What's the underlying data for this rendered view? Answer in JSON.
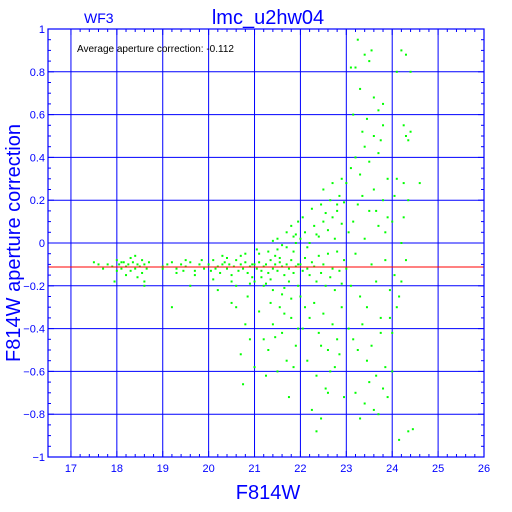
{
  "chart_data": {
    "type": "scatter",
    "panel_label": "WF3",
    "title": "lmc_u2hw04",
    "annotation": "Average aperture correction: -0.112",
    "xlabel": "F814W",
    "ylabel": "F814W aperture correction",
    "xlim": [
      16.5,
      26
    ],
    "ylim": [
      -1,
      1
    ],
    "x_ticks": [
      "17",
      "18",
      "19",
      "20",
      "21",
      "22",
      "23",
      "24",
      "25",
      "26"
    ],
    "y_ticks": [
      "1",
      "0.8",
      "0.6",
      "0.4",
      "0.2",
      "0",
      "−0.2",
      "−0.4",
      "−0.6",
      "−0.8",
      "−1"
    ],
    "reference_line": {
      "y": -0.112,
      "color": "#ff0000"
    },
    "grid": true,
    "colors": {
      "axes": "#0000ff",
      "points": "#00ff00",
      "text": "#0000ff",
      "reference": "#ff0000",
      "annotation": "#000000"
    },
    "points": [
      [
        17.5,
        -0.09
      ],
      [
        17.6,
        -0.1
      ],
      [
        17.7,
        -0.12
      ],
      [
        17.8,
        -0.1
      ],
      [
        17.9,
        -0.11
      ],
      [
        18.0,
        -0.08
      ],
      [
        18.05,
        -0.1
      ],
      [
        18.1,
        -0.12
      ],
      [
        18.15,
        -0.09
      ],
      [
        18.2,
        -0.11
      ],
      [
        18.25,
        -0.1
      ],
      [
        18.3,
        -0.13
      ],
      [
        18.35,
        -0.09
      ],
      [
        18.4,
        -0.12
      ],
      [
        18.45,
        -0.1
      ],
      [
        18.5,
        -0.11
      ],
      [
        18.55,
        -0.14
      ],
      [
        18.6,
        -0.1
      ],
      [
        18.65,
        -0.12
      ],
      [
        18.7,
        -0.09
      ],
      [
        18.2,
        -0.15
      ],
      [
        18.3,
        -0.07
      ],
      [
        18.45,
        -0.16
      ],
      [
        18.55,
        -0.08
      ],
      [
        18.6,
        -0.18
      ],
      [
        18.1,
        -0.09
      ],
      [
        17.95,
        -0.18
      ],
      [
        18.4,
        -0.06
      ],
      [
        18.6,
        -0.2
      ],
      [
        18.0,
        -0.13
      ],
      [
        19.0,
        -0.11
      ],
      [
        19.1,
        -0.1
      ],
      [
        19.2,
        -0.09
      ],
      [
        19.3,
        -0.12
      ],
      [
        19.4,
        -0.1
      ],
      [
        19.5,
        -0.11
      ],
      [
        19.6,
        -0.09
      ],
      [
        19.7,
        -0.13
      ],
      [
        19.8,
        -0.1
      ],
      [
        19.9,
        -0.12
      ],
      [
        19.3,
        -0.14
      ],
      [
        19.5,
        -0.08
      ],
      [
        19.7,
        -0.15
      ],
      [
        19.2,
        -0.3
      ],
      [
        19.6,
        -0.2
      ],
      [
        19.0,
        -0.12
      ],
      [
        19.85,
        -0.08
      ],
      [
        19.45,
        -0.13
      ],
      [
        20.0,
        -0.1
      ],
      [
        20.05,
        -0.13
      ],
      [
        20.1,
        -0.08
      ],
      [
        20.15,
        -0.12
      ],
      [
        20.2,
        -0.11
      ],
      [
        20.25,
        -0.14
      ],
      [
        20.3,
        -0.1
      ],
      [
        20.35,
        -0.09
      ],
      [
        20.4,
        -0.12
      ],
      [
        20.45,
        -0.1
      ],
      [
        20.5,
        -0.15
      ],
      [
        20.55,
        -0.11
      ],
      [
        20.6,
        -0.08
      ],
      [
        20.65,
        -0.13
      ],
      [
        20.7,
        -0.1
      ],
      [
        20.75,
        -0.12
      ],
      [
        20.8,
        -0.09
      ],
      [
        20.85,
        -0.14
      ],
      [
        20.9,
        -0.11
      ],
      [
        20.95,
        -0.1
      ],
      [
        20.1,
        -0.17
      ],
      [
        20.3,
        -0.06
      ],
      [
        20.5,
        -0.18
      ],
      [
        20.7,
        -0.06
      ],
      [
        20.9,
        -0.19
      ],
      [
        20.4,
        -0.07
      ],
      [
        20.6,
        -0.2
      ],
      [
        20.8,
        -0.05
      ],
      [
        20.2,
        -0.22
      ],
      [
        20.95,
        -0.16
      ],
      [
        20.6,
        -0.3
      ],
      [
        20.8,
        -0.38
      ],
      [
        20.7,
        -0.52
      ],
      [
        20.9,
        -0.45
      ],
      [
        20.75,
        -0.66
      ],
      [
        20.5,
        -0.28
      ],
      [
        20.85,
        -0.25
      ],
      [
        21.0,
        -0.1
      ],
      [
        21.05,
        -0.12
      ],
      [
        21.1,
        -0.09
      ],
      [
        21.15,
        -0.13
      ],
      [
        21.2,
        -0.11
      ],
      [
        21.25,
        -0.1
      ],
      [
        21.3,
        -0.14
      ],
      [
        21.35,
        -0.08
      ],
      [
        21.4,
        -0.12
      ],
      [
        21.45,
        -0.1
      ],
      [
        21.5,
        -0.13
      ],
      [
        21.55,
        -0.09
      ],
      [
        21.6,
        -0.11
      ],
      [
        21.65,
        -0.15
      ],
      [
        21.7,
        -0.1
      ],
      [
        21.75,
        -0.12
      ],
      [
        21.8,
        -0.08
      ],
      [
        21.85,
        -0.14
      ],
      [
        21.9,
        -0.11
      ],
      [
        21.95,
        -0.1
      ],
      [
        21.0,
        -0.18
      ],
      [
        21.1,
        -0.05
      ],
      [
        21.2,
        -0.2
      ],
      [
        21.3,
        -0.04
      ],
      [
        21.4,
        -0.22
      ],
      [
        21.5,
        -0.03
      ],
      [
        21.6,
        -0.24
      ],
      [
        21.7,
        -0.02
      ],
      [
        21.8,
        -0.26
      ],
      [
        21.9,
        0.0
      ],
      [
        21.05,
        -0.03
      ],
      [
        21.25,
        -0.19
      ],
      [
        21.45,
        -0.06
      ],
      [
        21.65,
        -0.21
      ],
      [
        21.85,
        -0.04
      ],
      [
        21.15,
        -0.16
      ],
      [
        21.35,
        -0.17
      ],
      [
        21.55,
        -0.07
      ],
      [
        21.75,
        -0.18
      ],
      [
        21.95,
        -0.2
      ],
      [
        21.1,
        -0.32
      ],
      [
        21.2,
        -0.45
      ],
      [
        21.3,
        -0.5
      ],
      [
        21.4,
        -0.38
      ],
      [
        21.5,
        -0.6
      ],
      [
        21.6,
        -0.42
      ],
      [
        21.7,
        -0.55
      ],
      [
        21.8,
        -0.35
      ],
      [
        21.9,
        -0.48
      ],
      [
        21.25,
        -0.62
      ],
      [
        21.55,
        -0.3
      ],
      [
        21.75,
        -0.72
      ],
      [
        21.35,
        -0.28
      ],
      [
        21.65,
        -0.33
      ],
      [
        21.85,
        -0.58
      ],
      [
        21.45,
        -0.44
      ],
      [
        21.0,
        -0.58
      ],
      [
        21.95,
        -0.4
      ],
      [
        21.5,
        0.02
      ],
      [
        21.7,
        0.05
      ],
      [
        21.8,
        0.08
      ],
      [
        21.9,
        0.04
      ],
      [
        21.6,
        -0.01
      ],
      [
        21.4,
        0.01
      ],
      [
        21.95,
        0.1
      ],
      [
        21.85,
        0.03
      ],
      [
        22.0,
        -0.1
      ],
      [
        22.05,
        -0.13
      ],
      [
        22.1,
        -0.07
      ],
      [
        22.15,
        -0.12
      ],
      [
        22.2,
        -0.15
      ],
      [
        22.25,
        -0.09
      ],
      [
        22.3,
        -0.11
      ],
      [
        22.35,
        -0.18
      ],
      [
        22.4,
        -0.06
      ],
      [
        22.45,
        -0.14
      ],
      [
        22.5,
        -0.1
      ],
      [
        22.55,
        -0.2
      ],
      [
        22.6,
        -0.05
      ],
      [
        22.65,
        -0.16
      ],
      [
        22.7,
        -0.12
      ],
      [
        22.75,
        -0.22
      ],
      [
        22.8,
        -0.04
      ],
      [
        22.85,
        -0.13
      ],
      [
        22.9,
        -0.19
      ],
      [
        22.95,
        -0.08
      ],
      [
        22.0,
        0.02
      ],
      [
        22.1,
        0.05
      ],
      [
        22.2,
        0.0
      ],
      [
        22.3,
        0.08
      ],
      [
        22.4,
        0.03
      ],
      [
        22.5,
        0.1
      ],
      [
        22.6,
        0.06
      ],
      [
        22.7,
        0.12
      ],
      [
        22.8,
        0.15
      ],
      [
        22.9,
        0.09
      ],
      [
        22.05,
        0.12
      ],
      [
        22.25,
        0.16
      ],
      [
        22.45,
        0.18
      ],
      [
        22.65,
        0.2
      ],
      [
        22.85,
        0.22
      ],
      [
        22.15,
        -0.02
      ],
      [
        22.35,
        0.04
      ],
      [
        22.55,
        0.14
      ],
      [
        22.75,
        0.02
      ],
      [
        22.95,
        0.19
      ],
      [
        22.0,
        -0.25
      ],
      [
        22.1,
        -0.3
      ],
      [
        22.2,
        -0.35
      ],
      [
        22.3,
        -0.28
      ],
      [
        22.4,
        -0.42
      ],
      [
        22.5,
        -0.33
      ],
      [
        22.6,
        -0.5
      ],
      [
        22.7,
        -0.38
      ],
      [
        22.8,
        -0.45
      ],
      [
        22.9,
        -0.3
      ],
      [
        22.15,
        -0.55
      ],
      [
        22.35,
        -0.62
      ],
      [
        22.55,
        -0.68
      ],
      [
        22.75,
        -0.58
      ],
      [
        22.95,
        -0.72
      ],
      [
        22.25,
        -0.78
      ],
      [
        22.45,
        -0.48
      ],
      [
        22.65,
        -0.6
      ],
      [
        22.85,
        -0.52
      ],
      [
        22.05,
        -0.4
      ],
      [
        22.35,
        -0.88
      ],
      [
        22.45,
        -0.82
      ],
      [
        22.6,
        -0.7
      ],
      [
        22.7,
        0.28
      ],
      [
        22.9,
        0.3
      ],
      [
        22.5,
        0.25
      ],
      [
        22.8,
        0.18
      ],
      [
        23.0,
        -0.12
      ],
      [
        23.05,
        0.05
      ],
      [
        23.1,
        -0.2
      ],
      [
        23.15,
        0.1
      ],
      [
        23.2,
        -0.05
      ],
      [
        23.25,
        0.18
      ],
      [
        23.3,
        -0.25
      ],
      [
        23.35,
        0.22
      ],
      [
        23.4,
        0.02
      ],
      [
        23.45,
        -0.3
      ],
      [
        23.5,
        0.15
      ],
      [
        23.55,
        -0.1
      ],
      [
        23.6,
        0.25
      ],
      [
        23.65,
        -0.18
      ],
      [
        23.7,
        0.08
      ],
      [
        23.75,
        -0.35
      ],
      [
        23.8,
        0.2
      ],
      [
        23.85,
        -0.08
      ],
      [
        23.9,
        0.12
      ],
      [
        23.95,
        -0.22
      ],
      [
        23.0,
        0.28
      ],
      [
        23.1,
        0.35
      ],
      [
        23.2,
        0.4
      ],
      [
        23.3,
        0.32
      ],
      [
        23.4,
        0.45
      ],
      [
        23.5,
        0.38
      ],
      [
        23.6,
        0.5
      ],
      [
        23.7,
        0.42
      ],
      [
        23.8,
        0.55
      ],
      [
        23.9,
        0.3
      ],
      [
        23.05,
        -0.4
      ],
      [
        23.15,
        -0.45
      ],
      [
        23.25,
        -0.5
      ],
      [
        23.35,
        -0.38
      ],
      [
        23.45,
        -0.55
      ],
      [
        23.55,
        -0.48
      ],
      [
        23.65,
        -0.62
      ],
      [
        23.75,
        -0.42
      ],
      [
        23.85,
        -0.58
      ],
      [
        23.95,
        -0.35
      ],
      [
        23.1,
        0.82
      ],
      [
        23.2,
        0.82
      ],
      [
        23.5,
        0.85
      ],
      [
        23.4,
        0.88
      ],
      [
        23.3,
        0.72
      ],
      [
        23.6,
        0.68
      ],
      [
        23.8,
        0.65
      ],
      [
        23.7,
        0.62
      ],
      [
        23.25,
        0.95
      ],
      [
        23.55,
        0.9
      ],
      [
        23.2,
        -0.7
      ],
      [
        23.4,
        -0.75
      ],
      [
        23.6,
        -0.78
      ],
      [
        23.8,
        -0.68
      ],
      [
        23.3,
        -0.82
      ],
      [
        23.5,
        -0.65
      ],
      [
        23.7,
        -0.8
      ],
      [
        23.9,
        -0.72
      ],
      [
        23.15,
        0.6
      ],
      [
        23.45,
        0.58
      ],
      [
        23.75,
        0.48
      ],
      [
        23.35,
        0.52
      ],
      [
        23.65,
        0.15
      ],
      [
        23.85,
        0.05
      ],
      [
        24.0,
        0.1
      ],
      [
        24.05,
        -0.15
      ],
      [
        24.1,
        0.3
      ],
      [
        24.15,
        -0.25
      ],
      [
        24.2,
        0.0
      ],
      [
        24.25,
        0.28
      ],
      [
        24.3,
        0.5
      ],
      [
        24.35,
        0.48
      ],
      [
        24.4,
        0.52
      ],
      [
        24.1,
        0.8
      ],
      [
        24.2,
        0.9
      ],
      [
        24.3,
        0.88
      ],
      [
        24.15,
        -0.92
      ],
      [
        24.35,
        -0.88
      ],
      [
        24.45,
        -0.87
      ],
      [
        24.0,
        -0.42
      ],
      [
        24.25,
        0.12
      ],
      [
        24.3,
        -0.08
      ],
      [
        24.1,
        -0.3
      ],
      [
        24.05,
        0.22
      ],
      [
        24.4,
        0.8
      ],
      [
        24.25,
        0.55
      ],
      [
        24.6,
        0.28
      ],
      [
        24.35,
        0.2
      ],
      [
        24.0,
        -0.6
      ],
      [
        24.2,
        -0.18
      ]
    ]
  }
}
